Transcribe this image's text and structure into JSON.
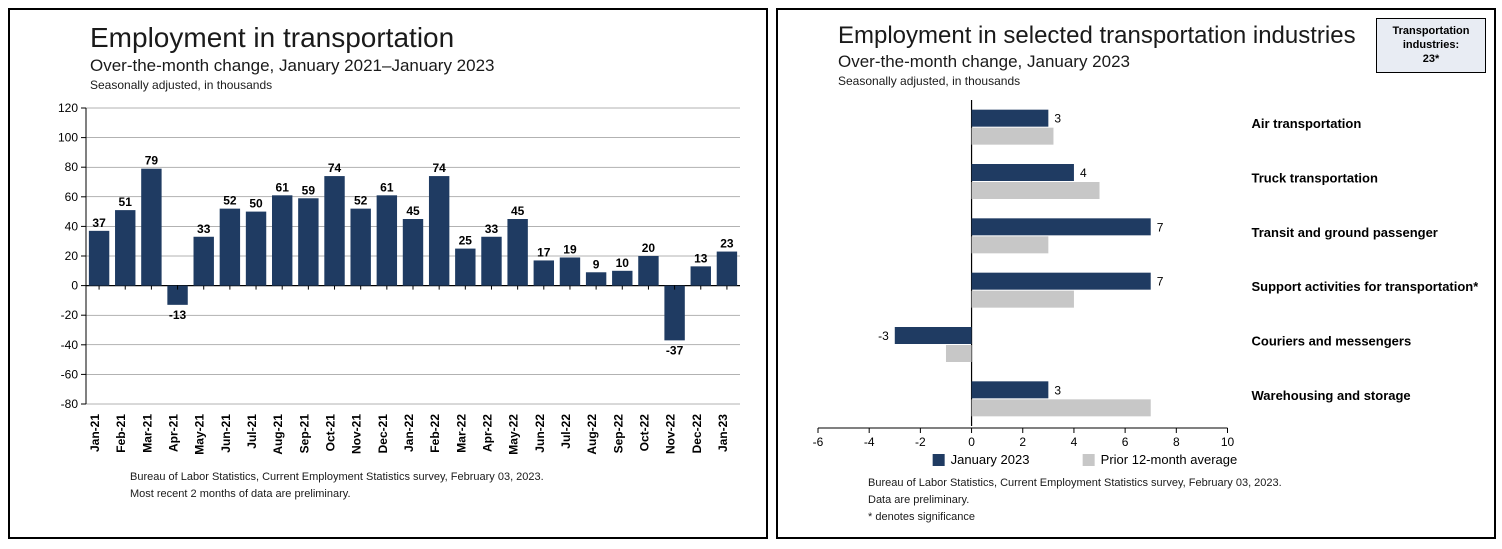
{
  "left": {
    "title": "Employment in transportation",
    "subtitle": "Over-the-month change, January 2021–January 2023",
    "note": "Seasonally adjusted, in thousands",
    "foot1": "Bureau of Labor Statistics, Current Employment Statistics survey, February 03, 2023.",
    "foot2": "Most recent 2 months of data are preliminary.",
    "chart": {
      "type": "bar",
      "ylim": [
        -80,
        120
      ],
      "ytick_step": 20,
      "bar_color": "#1f3b62",
      "axis_color": "#000000",
      "grid_color": "#666666",
      "background_color": "#ffffff",
      "label_fontsize": 12,
      "categories": [
        "Jan-21",
        "Feb-21",
        "Mar-21",
        "Apr-21",
        "May-21",
        "Jun-21",
        "Jul-21",
        "Aug-21",
        "Sep-21",
        "Oct-21",
        "Nov-21",
        "Dec-21",
        "Jan-22",
        "Feb-22",
        "Mar-22",
        "Apr-22",
        "May-22",
        "Jun-22",
        "Jul-22",
        "Aug-22",
        "Sep-22",
        "Oct-22",
        "Nov-22",
        "Dec-22",
        "Jan-23"
      ],
      "values": [
        37,
        51,
        79,
        -13,
        33,
        52,
        50,
        61,
        59,
        74,
        52,
        61,
        45,
        74,
        25,
        33,
        45,
        17,
        19,
        9,
        10,
        20,
        -37,
        13,
        23
      ]
    }
  },
  "right": {
    "title": "Employment in selected transportation industries",
    "subtitle": "Over-the-month change, January 2023",
    "note": "Seasonally adjusted, in thousands",
    "foot1": "Bureau of Labor Statistics, Current Employment Statistics survey, February 03, 2023.",
    "foot2": "Data are preliminary.",
    "foot3": "* denotes significance",
    "badge_line1": "Transportation",
    "badge_line2": "industries:",
    "badge_line3": "23*",
    "legend_series1": "January 2023",
    "legend_series2": "Prior 12-month average",
    "chart": {
      "type": "grouped-hbar",
      "xlim": [
        -6,
        10
      ],
      "xtick_step": 2,
      "series1_color": "#1f3b62",
      "series2_color": "#c7c7c7",
      "axis_color": "#000000",
      "background_color": "#ffffff",
      "label_fontsize": 13,
      "categories": [
        "Air transportation",
        "Truck transportation",
        "Transit and ground passenger",
        "Support activities for transportation*",
        "Couriers and messengers",
        "Warehousing and storage"
      ],
      "series1": [
        3,
        4,
        7,
        7,
        -3,
        3
      ],
      "series2": [
        3.2,
        5,
        3,
        4,
        -1,
        7
      ]
    }
  }
}
